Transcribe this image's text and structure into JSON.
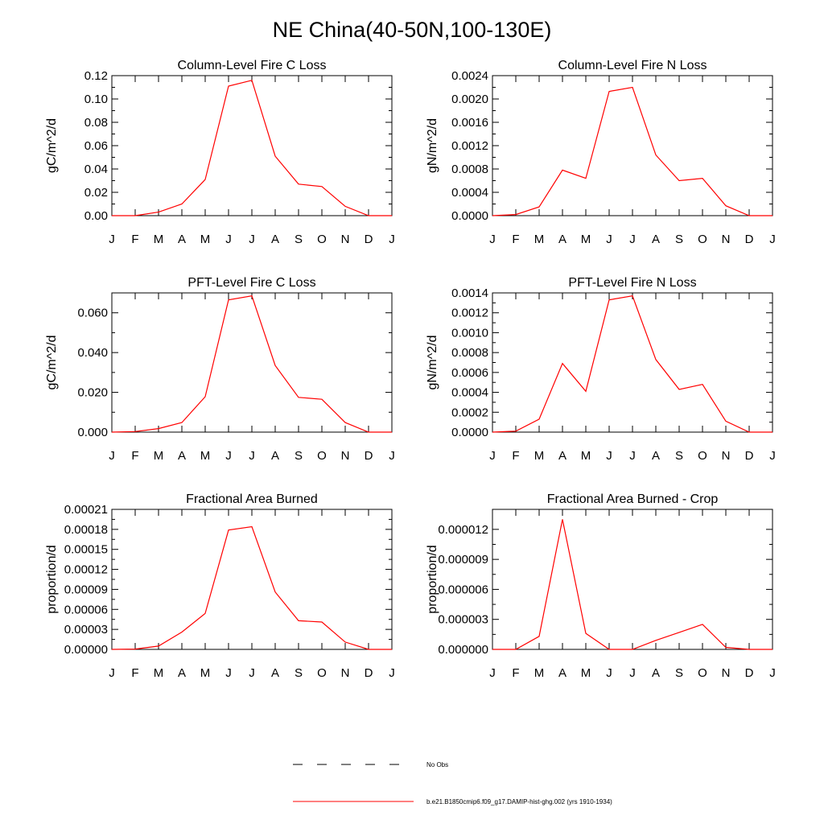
{
  "page_title": "NE China(40-50N,100-130E)",
  "line_color": "#ff0000",
  "legend": {
    "entries": [
      {
        "label": "No Obs",
        "style": "dashed",
        "color": "#000000"
      },
      {
        "label": "b.e21.B1850cmip6.f09_g17.DAMIP-hist-ghg.002 (yrs 1910-1934)",
        "style": "solid",
        "color": "#ff0000"
      }
    ]
  },
  "chart_data": [
    {
      "type": "line",
      "title": "Column-Level Fire C Loss",
      "ylabel": "gC/m^2/d",
      "ylim": [
        0,
        0.12
      ],
      "yticks": [
        "0.00",
        "0.02",
        "0.04",
        "0.06",
        "0.08",
        "0.10",
        "0.12"
      ],
      "categories": [
        "J",
        "F",
        "M",
        "A",
        "M",
        "J",
        "J",
        "A",
        "S",
        "O",
        "N",
        "D",
        "J"
      ],
      "series": [
        {
          "values": [
            0.0,
            0.0,
            0.003,
            0.01,
            0.031,
            0.111,
            0.116,
            0.051,
            0.027,
            0.025,
            0.008,
            0.0,
            0.0
          ]
        }
      ]
    },
    {
      "type": "line",
      "title": "Column-Level Fire N Loss",
      "ylabel": "gN/m^2/d",
      "ylim": [
        0,
        0.0024
      ],
      "yticks": [
        "0.0000",
        "0.0004",
        "0.0008",
        "0.0012",
        "0.0016",
        "0.0020",
        "0.0024"
      ],
      "categories": [
        "J",
        "F",
        "M",
        "A",
        "M",
        "J",
        "J",
        "A",
        "S",
        "O",
        "N",
        "D",
        "J"
      ],
      "series": [
        {
          "values": [
            0.0,
            2e-05,
            0.00015,
            0.00078,
            0.00064,
            0.00213,
            0.0022,
            0.00104,
            0.0006,
            0.00064,
            0.00017,
            0.0,
            0.0
          ]
        }
      ]
    },
    {
      "type": "line",
      "title": "PFT-Level Fire C Loss",
      "ylabel": "gC/m^2/d",
      "ylim": [
        0,
        0.07
      ],
      "yticks": [
        "0.000",
        "0.020",
        "0.040",
        "0.060"
      ],
      "ytick_values": [
        0,
        0.02,
        0.04,
        0.06
      ],
      "categories": [
        "J",
        "F",
        "M",
        "A",
        "M",
        "J",
        "J",
        "A",
        "S",
        "O",
        "N",
        "D",
        "J"
      ],
      "series": [
        {
          "values": [
            0.0,
            0.0003,
            0.0018,
            0.0048,
            0.0178,
            0.0665,
            0.0685,
            0.0335,
            0.0175,
            0.0165,
            0.0048,
            0.0,
            0.0
          ]
        }
      ]
    },
    {
      "type": "line",
      "title": "PFT-Level Fire N Loss",
      "ylabel": "gN/m^2/d",
      "ylim": [
        0,
        0.0014
      ],
      "yticks": [
        "0.0000",
        "0.0002",
        "0.0004",
        "0.0006",
        "0.0008",
        "0.0010",
        "0.0012",
        "0.0014"
      ],
      "categories": [
        "J",
        "F",
        "M",
        "A",
        "M",
        "J",
        "J",
        "A",
        "S",
        "O",
        "N",
        "D",
        "J"
      ],
      "series": [
        {
          "values": [
            0.0,
            1e-05,
            0.00013,
            0.00069,
            0.00041,
            0.00133,
            0.00137,
            0.00073,
            0.00043,
            0.00048,
            0.00011,
            0.0,
            0.0
          ]
        }
      ]
    },
    {
      "type": "line",
      "title": "Fractional Area Burned",
      "ylabel": "proportion/d",
      "ylim": [
        0,
        0.00021
      ],
      "yticks": [
        "0.00000",
        "0.00003",
        "0.00006",
        "0.00009",
        "0.00012",
        "0.00015",
        "0.00018",
        "0.00021"
      ],
      "categories": [
        "J",
        "F",
        "M",
        "A",
        "M",
        "J",
        "J",
        "A",
        "S",
        "O",
        "N",
        "D",
        "J"
      ],
      "series": [
        {
          "values": [
            0.0,
            5e-07,
            5e-06,
            2.6e-05,
            5.4e-05,
            0.000179,
            0.000184,
            8.6e-05,
            4.3e-05,
            4.1e-05,
            1.1e-05,
            0.0,
            0.0
          ]
        }
      ]
    },
    {
      "type": "line",
      "title": "Fractional Area Burned - Crop",
      "ylabel": "proportion/d",
      "ylim": [
        0,
        1.4e-05
      ],
      "yticks": [
        "0.000000",
        "0.000003",
        "0.000006",
        "0.000009",
        "0.000012"
      ],
      "ytick_values": [
        0,
        3e-06,
        6e-06,
        9e-06,
        1.2e-05
      ],
      "categories": [
        "J",
        "F",
        "M",
        "A",
        "M",
        "J",
        "J",
        "A",
        "S",
        "O",
        "N",
        "D",
        "J"
      ],
      "series": [
        {
          "values": [
            0.0,
            0.0,
            1.3e-06,
            1.3e-05,
            1.6e-06,
            0.0,
            0.0,
            9e-07,
            1.7e-06,
            2.5e-06,
            2e-07,
            0.0,
            0.0
          ]
        }
      ]
    }
  ]
}
